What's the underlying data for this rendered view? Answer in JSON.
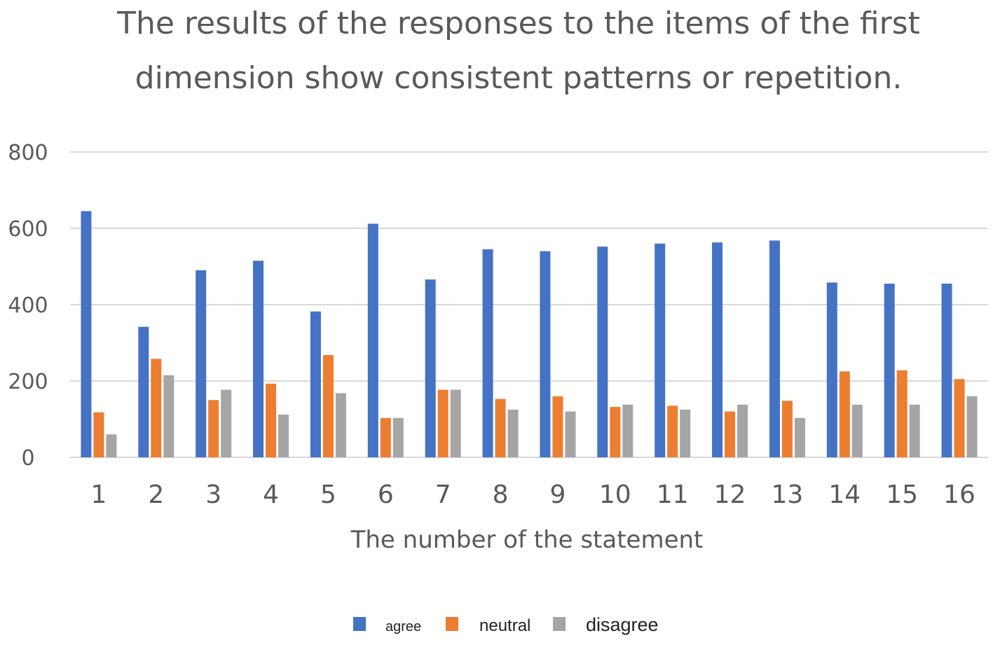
{
  "chart_data": {
    "type": "bar",
    "title": "The results of the responses to the items of the first dimension show consistent patterns or repetition.",
    "title_lines": [
      "The results of the responses to the items of the first",
      "dimension show consistent patterns or repetition."
    ],
    "xlabel": "The number of the statement",
    "ylabel": "",
    "ylim": [
      0,
      800
    ],
    "yticks": [
      0,
      200,
      400,
      600,
      800
    ],
    "grid": true,
    "legend_position": "bottom",
    "categories": [
      "1",
      "2",
      "3",
      "4",
      "5",
      "6",
      "7",
      "8",
      "9",
      "10",
      "11",
      "12",
      "13",
      "14",
      "15",
      "16"
    ],
    "series": [
      {
        "name": "agree",
        "color": "#4472c4",
        "values": [
          645,
          342,
          490,
          515,
          382,
          612,
          466,
          545,
          540,
          552,
          560,
          563,
          568,
          458,
          455,
          455
        ]
      },
      {
        "name": "neutral",
        "color": "#ed7d31",
        "values": [
          118,
          258,
          150,
          193,
          268,
          103,
          177,
          153,
          160,
          132,
          135,
          120,
          148,
          225,
          228,
          205
        ]
      },
      {
        "name": "disagree",
        "color": "#a5a5a5",
        "values": [
          60,
          215,
          177,
          112,
          168,
          103,
          177,
          125,
          120,
          138,
          125,
          138,
          103,
          138,
          138,
          160
        ]
      }
    ]
  }
}
